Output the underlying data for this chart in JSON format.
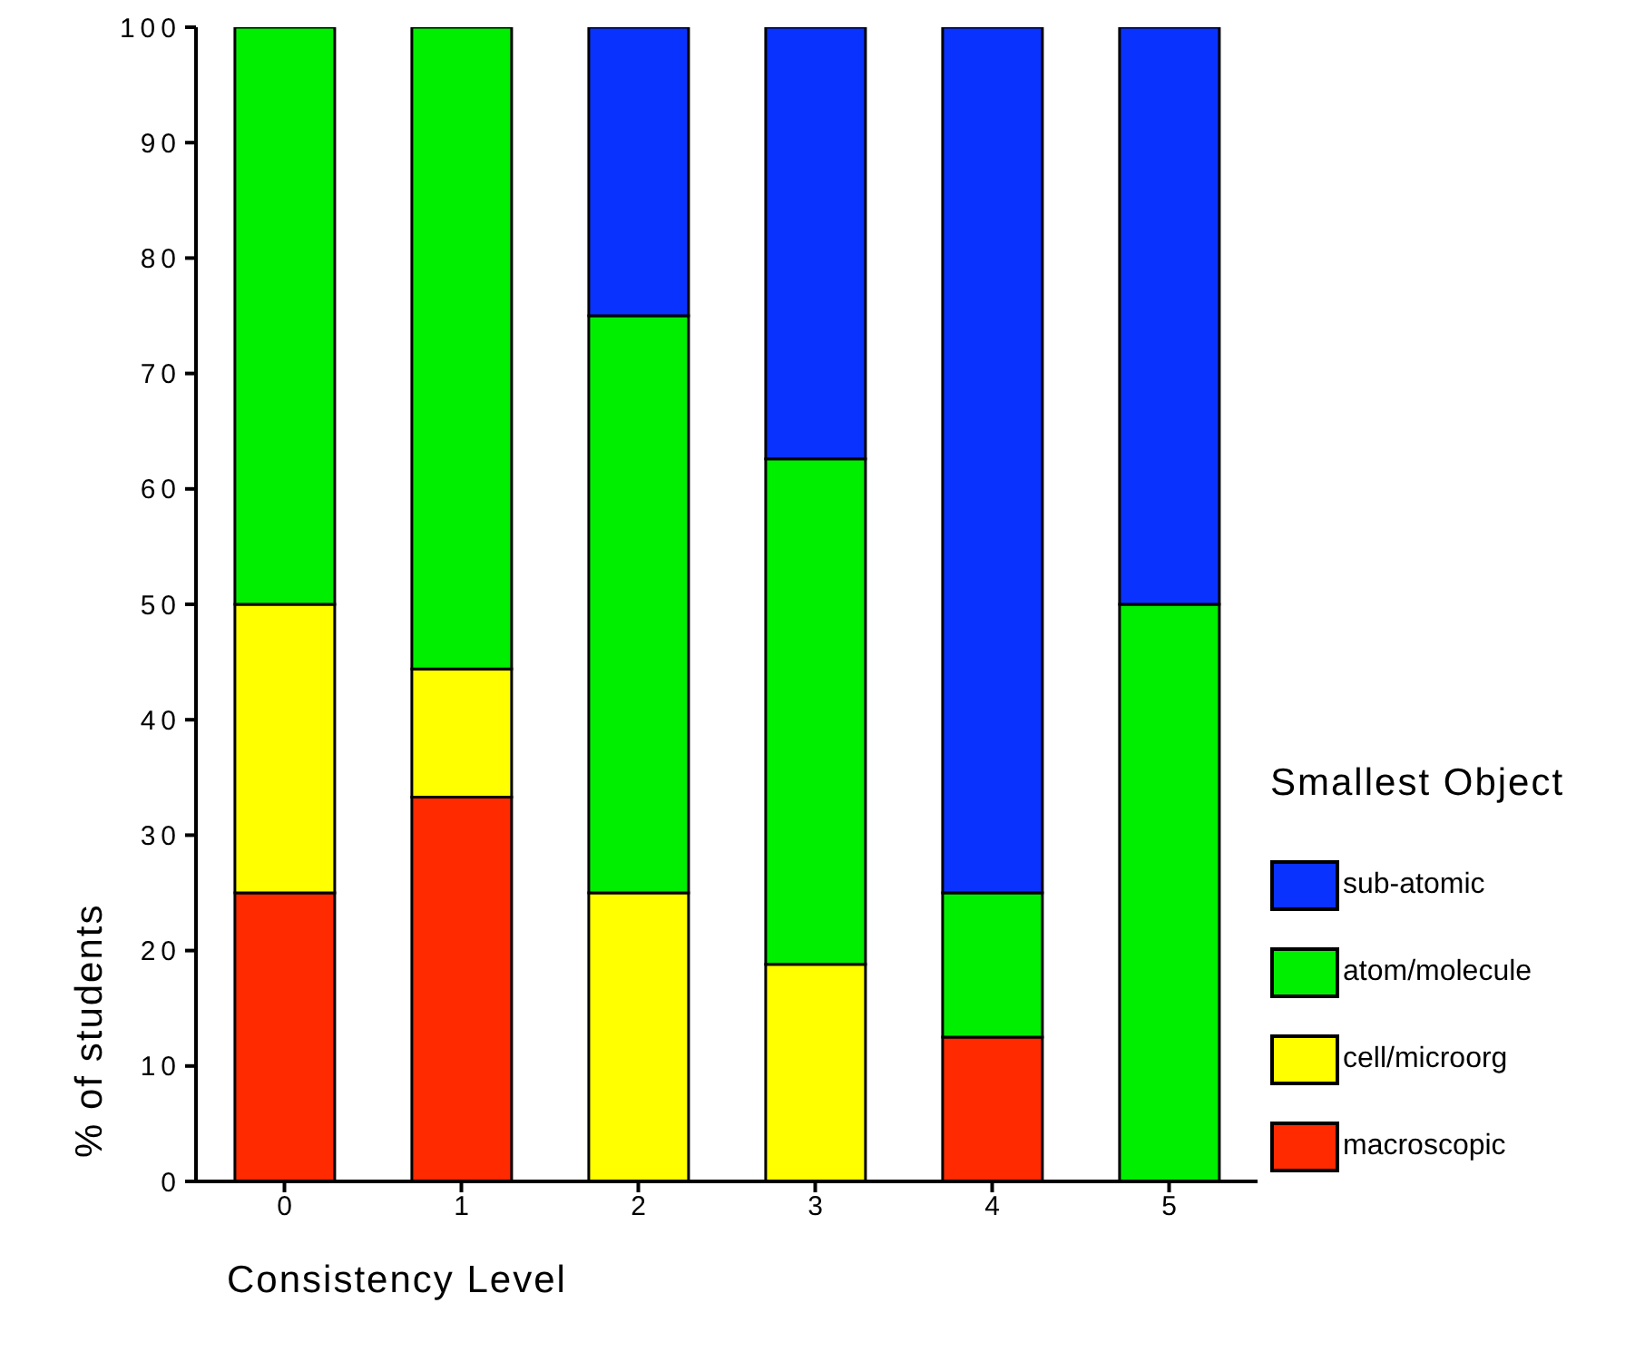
{
  "chart_data": {
    "type": "bar",
    "stacked": true,
    "xlabel": "Consistency Level",
    "ylabel": "% of students",
    "legend_title": "Smallest Object",
    "legend": "right",
    "categories": [
      "0",
      "1",
      "2",
      "3",
      "4",
      "5"
    ],
    "ylim": [
      0,
      100
    ],
    "yticks": [
      0,
      10,
      20,
      30,
      40,
      50,
      60,
      70,
      80,
      90,
      100
    ],
    "grid": false,
    "series": [
      {
        "name": "macroscopic",
        "color": "#ff2a00",
        "values": [
          25,
          33.3,
          0,
          0,
          12.5,
          0
        ]
      },
      {
        "name": "cell/microorg",
        "color": "#ffff00",
        "values": [
          25,
          11.1,
          25,
          18.8,
          0,
          0
        ]
      },
      {
        "name": "atom/molecule",
        "color": "#00ee00",
        "values": [
          50,
          55.6,
          50,
          43.8,
          12.5,
          50
        ]
      },
      {
        "name": "sub-atomic",
        "color": "#0a32ff",
        "values": [
          0,
          0,
          25,
          37.5,
          75,
          50
        ]
      }
    ]
  }
}
